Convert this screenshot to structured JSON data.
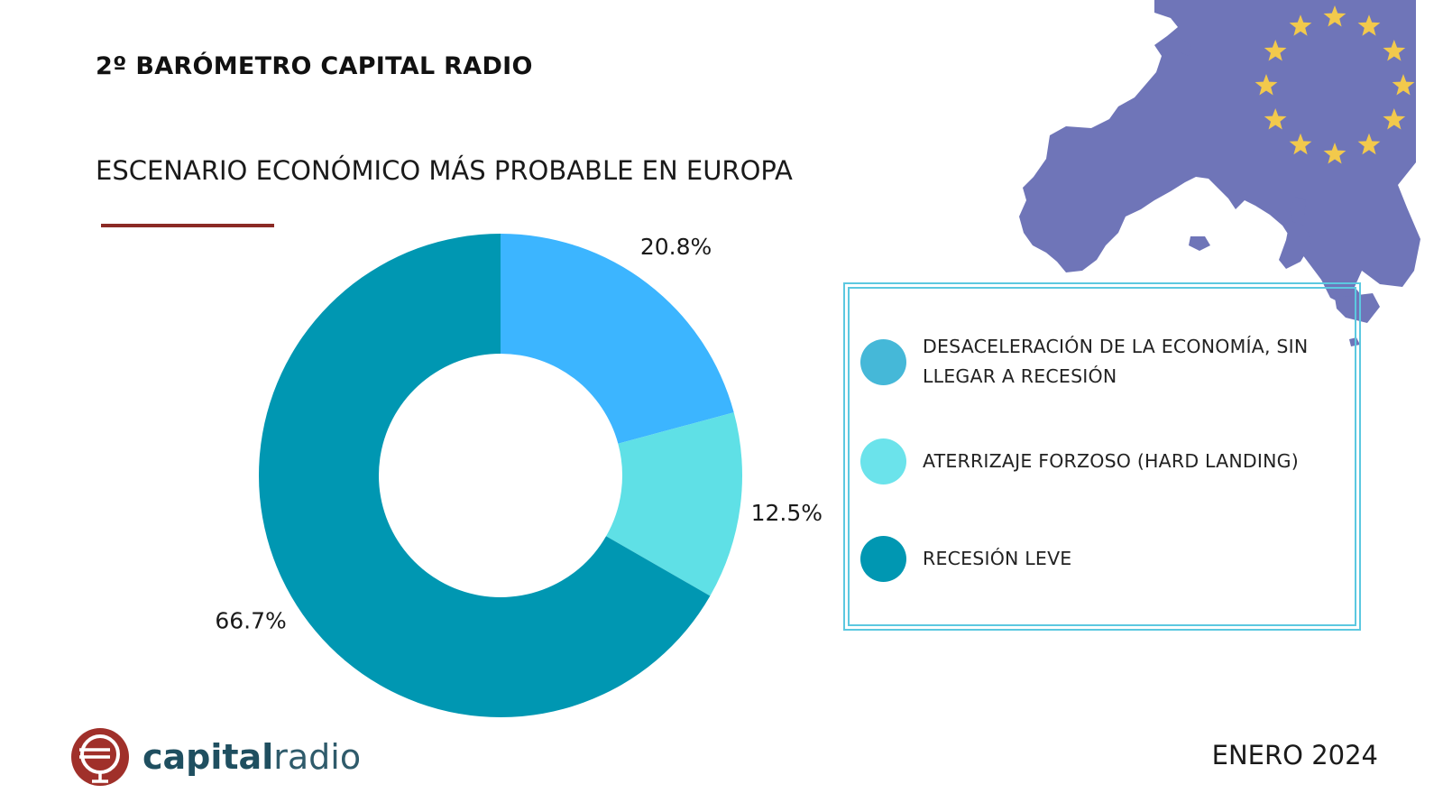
{
  "title": "2º BARÓMETRO CAPITAL RADIO",
  "date": "ENERO 2024",
  "logo": {
    "text_bold": "capital",
    "text_light": "radio"
  },
  "colors": {
    "accent_rule": "#8b2a25",
    "map": "#6f75b8",
    "stars": "#f2c94c",
    "legend_border": "#5cc8e0"
  },
  "chart_data": {
    "type": "pie",
    "donut": true,
    "title": "ESCENARIO ECONÓMICO MÁS PROBABLE EN EUROPA",
    "slices": [
      {
        "value": 20.8,
        "label": "20.8%",
        "color": "#3cb5ff"
      },
      {
        "value": 12.5,
        "label": "12.5%",
        "color": "#5fe0e6"
      },
      {
        "value": 66.7,
        "label": "66.7%",
        "color": "#0097b2"
      }
    ],
    "legend": [
      {
        "label": "DESACELERACIÓN DE LA ECONOMÍA, SIN LLEGAR A RECESIÓN",
        "color": "#45b8d8"
      },
      {
        "label": "ATERRIZAJE FORZOSO (HARD LANDING)",
        "color": "#6be3eb"
      },
      {
        "label": "RECESIÓN LEVE",
        "color": "#0097b2"
      }
    ]
  }
}
